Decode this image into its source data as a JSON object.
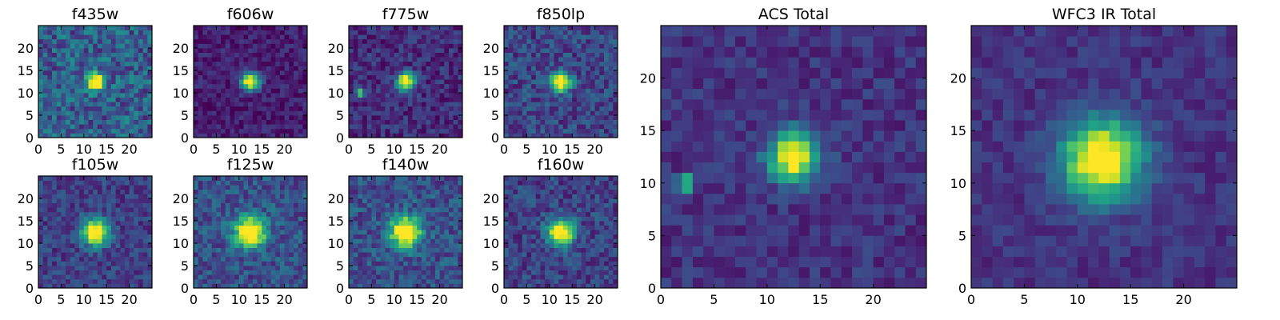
{
  "chart_data": [
    {
      "type": "heatmap",
      "title": "f435w",
      "xticks": [
        0,
        5,
        10,
        15,
        20
      ],
      "yticks": [
        0,
        5,
        10,
        15,
        20
      ],
      "xlim": [
        0,
        25
      ],
      "ylim": [
        0,
        25
      ],
      "source": {
        "cx": 12.5,
        "cy": 12.5,
        "peak": 1.0,
        "sigma": 1.4
      },
      "background": {
        "level": 0.5,
        "noise": 0.4
      }
    },
    {
      "type": "heatmap",
      "title": "f606w",
      "xticks": [
        0,
        5,
        10,
        15,
        20
      ],
      "yticks": [
        0,
        5,
        10,
        15,
        20
      ],
      "xlim": [
        0,
        25
      ],
      "ylim": [
        0,
        25
      ],
      "source": {
        "cx": 12.5,
        "cy": 12.5,
        "peak": 1.0,
        "sigma": 1.4
      },
      "background": {
        "level": 0.15,
        "noise": 0.2
      }
    },
    {
      "type": "heatmap",
      "title": "f775w",
      "xticks": [
        0,
        5,
        10,
        15,
        20
      ],
      "yticks": [
        0,
        5,
        10,
        15,
        20
      ],
      "xlim": [
        0,
        25
      ],
      "ylim": [
        0,
        25
      ],
      "source": {
        "cx": 12.5,
        "cy": 12.5,
        "peak": 1.0,
        "sigma": 1.4
      },
      "secondary": {
        "cx": 2.5,
        "cy": 10,
        "peak": 0.95
      },
      "background": {
        "level": 0.22,
        "noise": 0.25
      }
    },
    {
      "type": "heatmap",
      "title": "f850lp",
      "xticks": [
        0,
        5,
        10,
        15,
        20
      ],
      "yticks": [
        0,
        5,
        10,
        15,
        20
      ],
      "xlim": [
        0,
        25
      ],
      "ylim": [
        0,
        25
      ],
      "source": {
        "cx": 12.5,
        "cy": 12.5,
        "peak": 1.0,
        "sigma": 1.5
      },
      "background": {
        "level": 0.35,
        "noise": 0.3
      }
    },
    {
      "type": "heatmap",
      "title": "f105w",
      "xticks": [
        0,
        5,
        10,
        15,
        20
      ],
      "yticks": [
        0,
        5,
        10,
        15,
        20
      ],
      "xlim": [
        0,
        25
      ],
      "ylim": [
        0,
        25
      ],
      "source": {
        "cx": 12.5,
        "cy": 12.5,
        "peak": 1.0,
        "sigma": 2.0
      },
      "background": {
        "level": 0.32,
        "noise": 0.25
      }
    },
    {
      "type": "heatmap",
      "title": "f125w",
      "xticks": [
        0,
        5,
        10,
        15,
        20
      ],
      "yticks": [
        0,
        5,
        10,
        15,
        20
      ],
      "xlim": [
        0,
        25
      ],
      "ylim": [
        0,
        25
      ],
      "source": {
        "cx": 12.5,
        "cy": 12.5,
        "peak": 1.0,
        "sigma": 2.3
      },
      "background": {
        "level": 0.42,
        "noise": 0.3
      }
    },
    {
      "type": "heatmap",
      "title": "f140w",
      "xticks": [
        0,
        5,
        10,
        15,
        20
      ],
      "yticks": [
        0,
        5,
        10,
        15,
        20
      ],
      "xlim": [
        0,
        25
      ],
      "ylim": [
        0,
        25
      ],
      "source": {
        "cx": 12.5,
        "cy": 12.5,
        "peak": 1.0,
        "sigma": 2.3
      },
      "background": {
        "level": 0.42,
        "noise": 0.3
      }
    },
    {
      "type": "heatmap",
      "title": "f160w",
      "xticks": [
        0,
        5,
        10,
        15,
        20
      ],
      "yticks": [
        0,
        5,
        10,
        15,
        20
      ],
      "xlim": [
        0,
        25
      ],
      "ylim": [
        0,
        25
      ],
      "source": {
        "cx": 12.5,
        "cy": 12.5,
        "peak": 1.0,
        "sigma": 2.0
      },
      "background": {
        "level": 0.33,
        "noise": 0.28
      }
    },
    {
      "type": "heatmap",
      "title": "ACS Total",
      "xticks": [
        0,
        5,
        10,
        15,
        20
      ],
      "yticks": [
        0,
        5,
        10,
        15,
        20
      ],
      "xlim": [
        0,
        25
      ],
      "ylim": [
        0,
        25
      ],
      "source": {
        "cx": 12.5,
        "cy": 12.5,
        "peak": 1.0,
        "sigma": 1.6
      },
      "secondary": {
        "cx": 2.5,
        "cy": 10,
        "peak": 0.65
      },
      "background": {
        "level": 0.25,
        "noise": 0.18
      }
    },
    {
      "type": "heatmap",
      "title": "WFC3 IR Total",
      "xticks": [
        0,
        5,
        10,
        15,
        20
      ],
      "yticks": [
        0,
        5,
        10,
        15,
        20
      ],
      "xlim": [
        0,
        25
      ],
      "ylim": [
        0,
        25
      ],
      "source": {
        "cx": 12.3,
        "cy": 12.3,
        "peak": 1.0,
        "sigma": 2.6
      },
      "background": {
        "level": 0.25,
        "noise": 0.15
      }
    }
  ],
  "colormap": "viridis",
  "colors": {
    "frame": "#000000",
    "background": "#ffffff"
  }
}
